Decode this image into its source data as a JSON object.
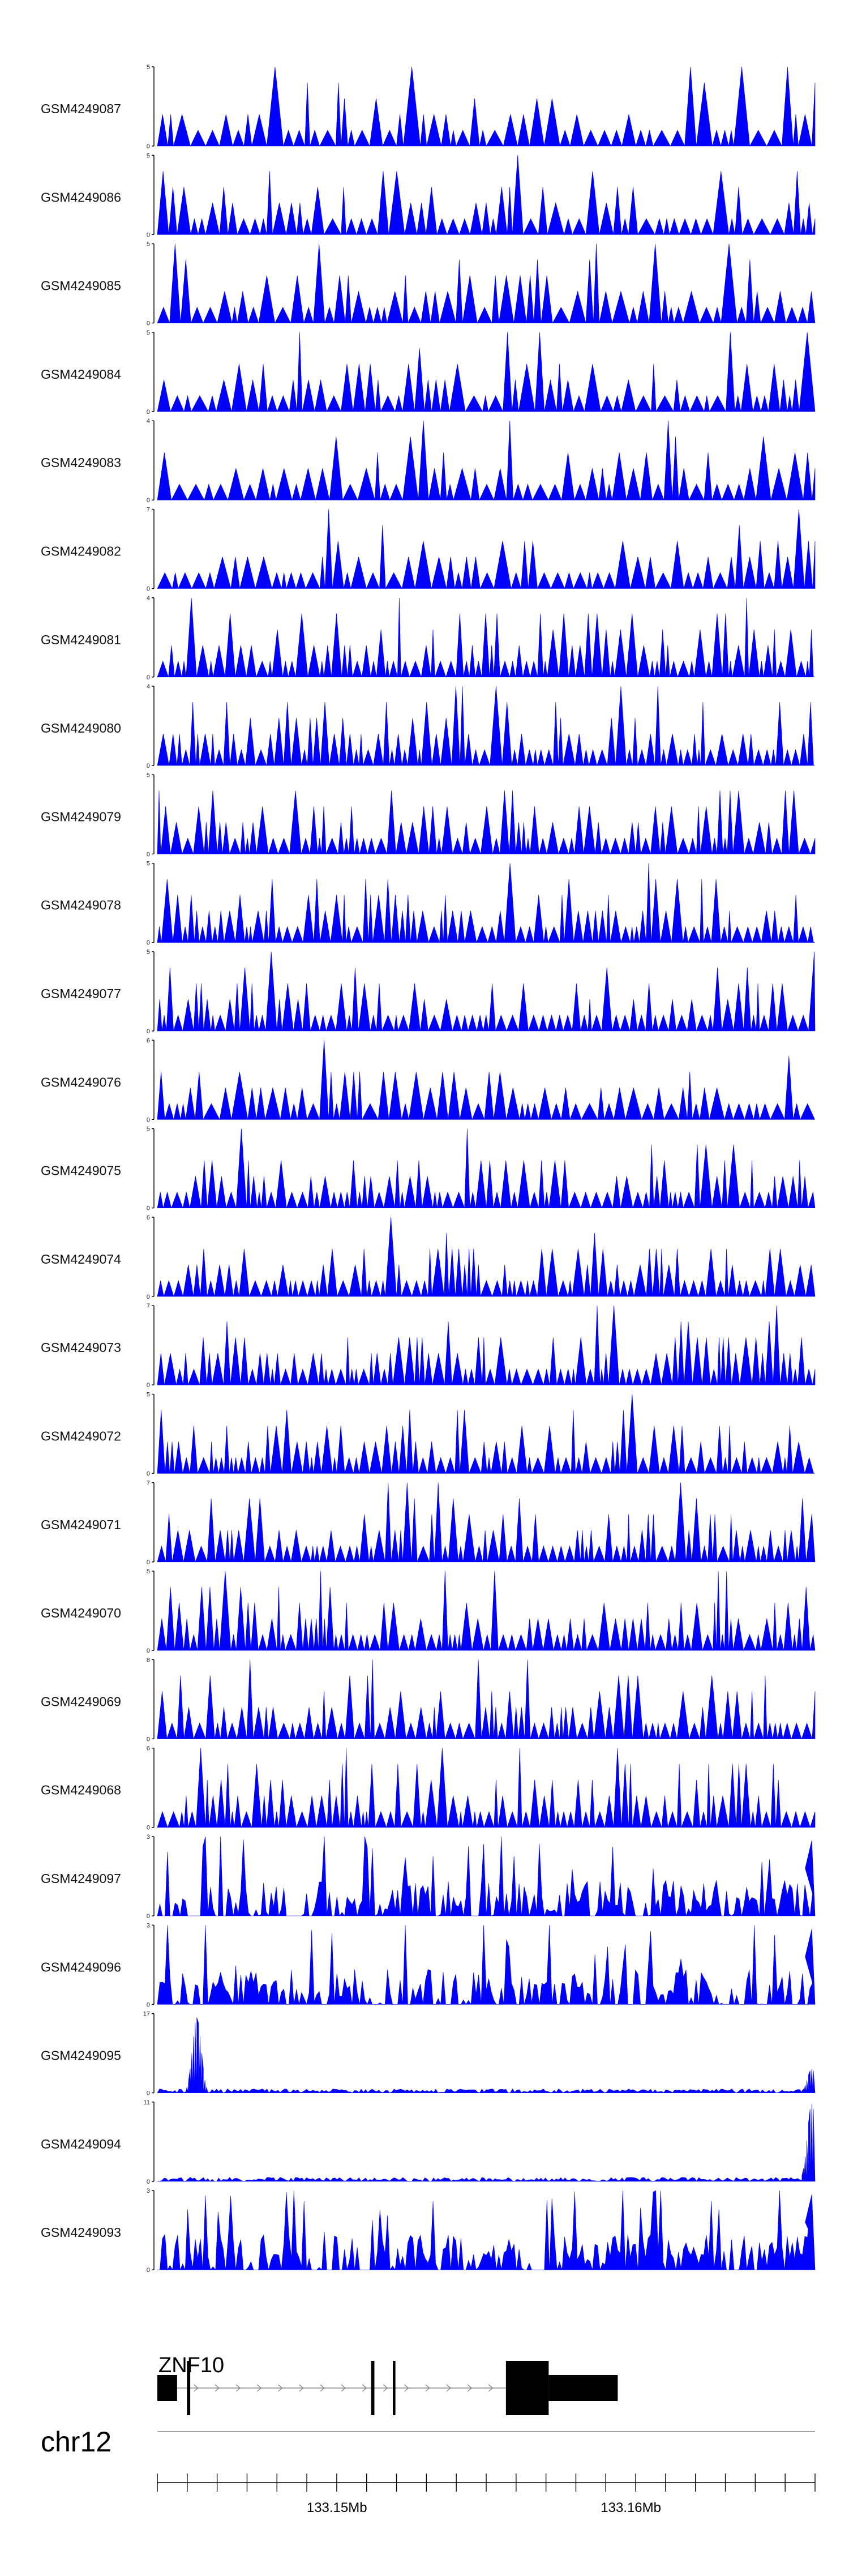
{
  "chart_data": {
    "type": "area",
    "color": "#0000ff",
    "tracks": [
      {
        "name": "GSM4249087",
        "ylim": [
          0,
          5
        ],
        "yticks": [
          "5",
          "0"
        ],
        "pattern": "sparse"
      },
      {
        "name": "GSM4249086",
        "ylim": [
          0,
          5
        ],
        "yticks": [
          "5",
          "0"
        ],
        "pattern": "sparse"
      },
      {
        "name": "GSM4249085",
        "ylim": [
          0,
          5
        ],
        "yticks": [
          "5",
          "0"
        ],
        "pattern": "sparse"
      },
      {
        "name": "GSM4249084",
        "ylim": [
          0,
          5
        ],
        "yticks": [
          "5",
          "0"
        ],
        "pattern": "sparse"
      },
      {
        "name": "GSM4249083",
        "ylim": [
          0,
          4
        ],
        "yticks": [
          "4",
          "0"
        ],
        "pattern": "sparse"
      },
      {
        "name": "GSM4249082",
        "ylim": [
          0,
          7
        ],
        "yticks": [
          "7",
          "0"
        ],
        "pattern": "sparse"
      },
      {
        "name": "GSM4249081",
        "ylim": [
          0,
          4
        ],
        "yticks": [
          "4",
          "0"
        ],
        "pattern": "dense"
      },
      {
        "name": "GSM4249080",
        "ylim": [
          0,
          4
        ],
        "yticks": [
          "4",
          "0"
        ],
        "pattern": "dense"
      },
      {
        "name": "GSM4249079",
        "ylim": [
          0,
          5
        ],
        "yticks": [
          "5",
          "0"
        ],
        "pattern": "dense"
      },
      {
        "name": "GSM4249078",
        "ylim": [
          0,
          5
        ],
        "yticks": [
          "5",
          "0"
        ],
        "pattern": "dense"
      },
      {
        "name": "GSM4249077",
        "ylim": [
          0,
          5
        ],
        "yticks": [
          "5",
          "0"
        ],
        "pattern": "dense"
      },
      {
        "name": "GSM4249076",
        "ylim": [
          0,
          6
        ],
        "yticks": [
          "6",
          "0"
        ],
        "pattern": "sparse"
      },
      {
        "name": "GSM4249075",
        "ylim": [
          0,
          5
        ],
        "yticks": [
          "5",
          "0"
        ],
        "pattern": "dense"
      },
      {
        "name": "GSM4249074",
        "ylim": [
          0,
          6
        ],
        "yticks": [
          "6",
          "0"
        ],
        "pattern": "dense"
      },
      {
        "name": "GSM4249073",
        "ylim": [
          0,
          7
        ],
        "yticks": [
          "7",
          "0"
        ],
        "pattern": "dense"
      },
      {
        "name": "GSM4249072",
        "ylim": [
          0,
          5
        ],
        "yticks": [
          "5",
          "0"
        ],
        "pattern": "dense"
      },
      {
        "name": "GSM4249071",
        "ylim": [
          0,
          7
        ],
        "yticks": [
          "7",
          "0"
        ],
        "pattern": "dense"
      },
      {
        "name": "GSM4249070",
        "ylim": [
          0,
          5
        ],
        "yticks": [
          "5",
          "0"
        ],
        "pattern": "dense"
      },
      {
        "name": "GSM4249069",
        "ylim": [
          0,
          8
        ],
        "yticks": [
          "8",
          "0"
        ],
        "pattern": "dense"
      },
      {
        "name": "GSM4249068",
        "ylim": [
          0,
          6
        ],
        "yticks": [
          "6",
          "0"
        ],
        "pattern": "dense"
      },
      {
        "name": "GSM4249097",
        "ylim": [
          0,
          3
        ],
        "yticks": [
          "3",
          "0"
        ],
        "pattern": "continuous"
      },
      {
        "name": "GSM4249096",
        "ylim": [
          0,
          3
        ],
        "yticks": [
          "3",
          "0"
        ],
        "pattern": "continuous"
      },
      {
        "name": "GSM4249095",
        "ylim": [
          0,
          17
        ],
        "yticks": [
          "17",
          "0"
        ],
        "pattern": "low",
        "peaks": [
          [
            0.06,
            0.95
          ],
          [
            0.995,
            0.3
          ]
        ]
      },
      {
        "name": "GSM4249094",
        "ylim": [
          0,
          11
        ],
        "yticks": [
          "11",
          "0"
        ],
        "pattern": "low",
        "peaks": [
          [
            0.995,
            0.98
          ]
        ]
      },
      {
        "name": "GSM4249093",
        "ylim": [
          0,
          3
        ],
        "yticks": [
          "3",
          "0"
        ],
        "pattern": "continuous"
      }
    ],
    "gene": {
      "name": "ZNF10",
      "exons": [
        {
          "start": 0.0,
          "end": 0.03,
          "kind": "utr"
        },
        {
          "start": 0.045,
          "end": 0.05,
          "kind": "cds"
        },
        {
          "start": 0.325,
          "end": 0.33,
          "kind": "cds"
        },
        {
          "start": 0.358,
          "end": 0.362,
          "kind": "cds"
        },
        {
          "start": 0.53,
          "end": 0.595,
          "kind": "cds"
        },
        {
          "start": 0.595,
          "end": 0.7,
          "kind": "utr"
        }
      ],
      "intron_start": 0.03,
      "intron_end": 0.53
    },
    "chromosome": "chr12",
    "axis": {
      "labels": [
        {
          "value": "133.15Mb",
          "frac": 0.273
        },
        {
          "value": "133.16Mb",
          "frac": 0.72
        }
      ]
    }
  }
}
